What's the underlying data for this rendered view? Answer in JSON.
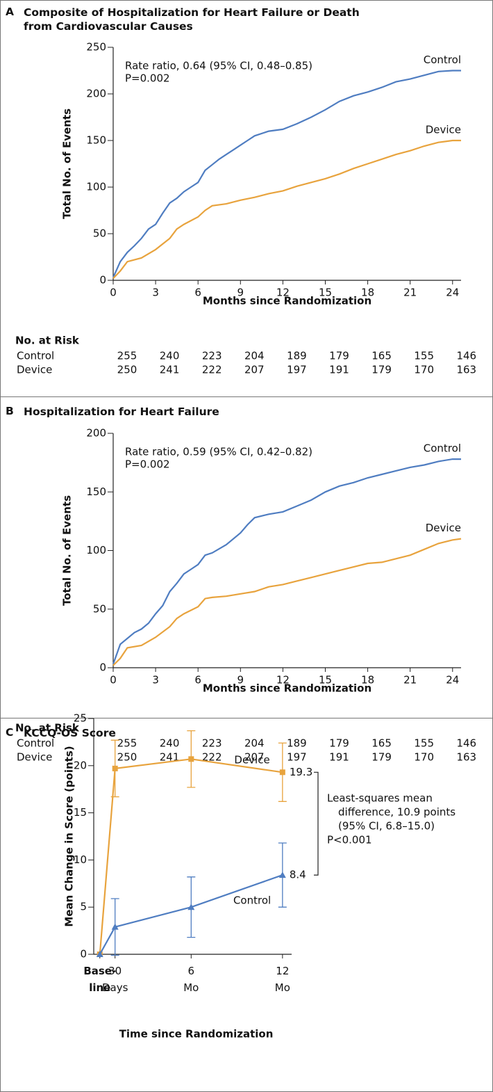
{
  "chart_data": [
    {
      "type": "line",
      "label": "A",
      "title": "Composite of Hospitalization for Heart Failure or Death from Cardiovascular Causes",
      "annotations": [
        "Rate ratio, 0.64 (95% CI, 0.48–0.85)",
        "P=0.002"
      ],
      "x_label": "Months since Randomization",
      "y_label": "Total No. of Events",
      "xlim": [
        0,
        24.6
      ],
      "xticks": [
        0,
        3,
        6,
        9,
        12,
        15,
        18,
        21,
        24
      ],
      "ylim": [
        0,
        250
      ],
      "yticks": [
        0,
        50,
        100,
        150,
        200,
        250
      ],
      "series": [
        {
          "name": "Control",
          "color": "#4f7dc1",
          "x": [
            0,
            0.5,
            1,
            1.5,
            2,
            2.5,
            3,
            3.5,
            4,
            4.5,
            5,
            5.5,
            6,
            6.5,
            7,
            7.5,
            8,
            8.5,
            9,
            9.5,
            10,
            11,
            12,
            13,
            14,
            15,
            16,
            17,
            18,
            19,
            20,
            21,
            22,
            23,
            24,
            24.6
          ],
          "values": [
            3,
            20,
            30,
            37,
            45,
            55,
            60,
            72,
            83,
            88,
            95,
            100,
            105,
            118,
            124,
            130,
            135,
            140,
            145,
            150,
            155,
            160,
            162,
            168,
            175,
            183,
            192,
            198,
            202,
            207,
            213,
            216,
            220,
            224,
            225,
            225
          ]
        },
        {
          "name": "Device",
          "color": "#e8a33d",
          "x": [
            0,
            0.5,
            1,
            2,
            3,
            4,
            4.5,
            5,
            6,
            6.5,
            7,
            8,
            9,
            10,
            11,
            12,
            13,
            14,
            15,
            16,
            17,
            18,
            19,
            20,
            21,
            22,
            23,
            24,
            24.6
          ],
          "values": [
            2,
            10,
            20,
            24,
            33,
            45,
            55,
            60,
            68,
            75,
            80,
            82,
            86,
            89,
            93,
            96,
            101,
            105,
            109,
            114,
            120,
            125,
            130,
            135,
            139,
            144,
            148,
            150,
            150
          ]
        }
      ],
      "risk_table": {
        "title": "No. at Risk",
        "rows": [
          {
            "name": "Control",
            "values": [
              255,
              240,
              223,
              204,
              189,
              179,
              165,
              155,
              146
            ]
          },
          {
            "name": "Device",
            "values": [
              250,
              241,
              222,
              207,
              197,
              191,
              179,
              170,
              163
            ]
          }
        ]
      }
    },
    {
      "type": "line",
      "label": "B",
      "title": "Hospitalization for Heart Failure",
      "annotations": [
        "Rate ratio, 0.59 (95% CI, 0.42–0.82)",
        "P=0.002"
      ],
      "x_label": "Months since Randomization",
      "y_label": "Total No. of Events",
      "xlim": [
        0,
        24.6
      ],
      "xticks": [
        0,
        3,
        6,
        9,
        12,
        15,
        18,
        21,
        24
      ],
      "ylim": [
        0,
        200
      ],
      "yticks": [
        0,
        50,
        100,
        150,
        200
      ],
      "series": [
        {
          "name": "Control",
          "color": "#4f7dc1",
          "x": [
            0,
            0.5,
            1,
            1.5,
            2,
            2.5,
            3,
            3.5,
            4,
            4.5,
            5,
            5.5,
            6,
            6.5,
            7,
            8,
            9,
            9.5,
            10,
            11,
            12,
            13,
            14,
            15,
            16,
            17,
            18,
            19,
            20,
            21,
            22,
            23,
            24,
            24.6
          ],
          "values": [
            3,
            20,
            25,
            30,
            33,
            38,
            46,
            53,
            65,
            72,
            80,
            84,
            88,
            96,
            98,
            105,
            115,
            122,
            128,
            131,
            133,
            138,
            143,
            150,
            155,
            158,
            162,
            165,
            168,
            171,
            173,
            176,
            178,
            178
          ]
        },
        {
          "name": "Device",
          "color": "#e8a33d",
          "x": [
            0,
            0.5,
            1,
            2,
            3,
            4,
            4.5,
            5,
            6,
            6.5,
            7,
            8,
            9,
            10,
            11,
            12,
            13,
            14,
            15,
            16,
            17,
            18,
            19,
            20,
            21,
            22,
            23,
            24,
            24.6
          ],
          "values": [
            2,
            8,
            17,
            19,
            26,
            35,
            42,
            46,
            52,
            59,
            60,
            61,
            63,
            65,
            69,
            71,
            74,
            77,
            80,
            83,
            86,
            89,
            90,
            93,
            96,
            101,
            106,
            109,
            110
          ]
        }
      ],
      "risk_table": {
        "title": "No. at Risk",
        "rows": [
          {
            "name": "Control",
            "values": [
              255,
              240,
              223,
              204,
              189,
              179,
              165,
              155,
              146
            ]
          },
          {
            "name": "Device",
            "values": [
              250,
              241,
              222,
              207,
              197,
              191,
              179,
              170,
              163
            ]
          }
        ]
      }
    },
    {
      "type": "errorbar",
      "label": "C",
      "title": "KCCQ-OS Score",
      "annotations": [
        "Least-squares mean",
        "difference, 10.9 points",
        "(95% CI, 6.8–15.0)",
        "P<0.001"
      ],
      "x_label": "Time since Randomization",
      "y_label": "Mean Change in Score (points)",
      "xlim": [
        -0.4,
        12.6
      ],
      "xticks": [
        {
          "value": 0,
          "label": "Base- line"
        },
        {
          "value": 1,
          "label": "30 Days"
        },
        {
          "value": 6,
          "label": "6 Mo"
        },
        {
          "value": 12,
          "label": "12 Mo"
        }
      ],
      "ylim": [
        0,
        25
      ],
      "yticks": [
        0,
        5,
        10,
        15,
        20,
        25
      ],
      "series": [
        {
          "name": "Device",
          "color": "#e8a33d",
          "marker": "square",
          "x": [
            0,
            1,
            6,
            12
          ],
          "values": [
            0,
            19.7,
            20.7,
            19.3
          ],
          "errors": [
            null,
            3.0,
            3.0,
            3.1
          ]
        },
        {
          "name": "Control",
          "color": "#4f7dc1",
          "marker": "triangle",
          "x": [
            0,
            1,
            6,
            12
          ],
          "values": [
            0,
            2.9,
            5.0,
            8.4
          ],
          "errors": [
            null,
            3.0,
            3.2,
            3.4
          ]
        }
      ]
    }
  ]
}
